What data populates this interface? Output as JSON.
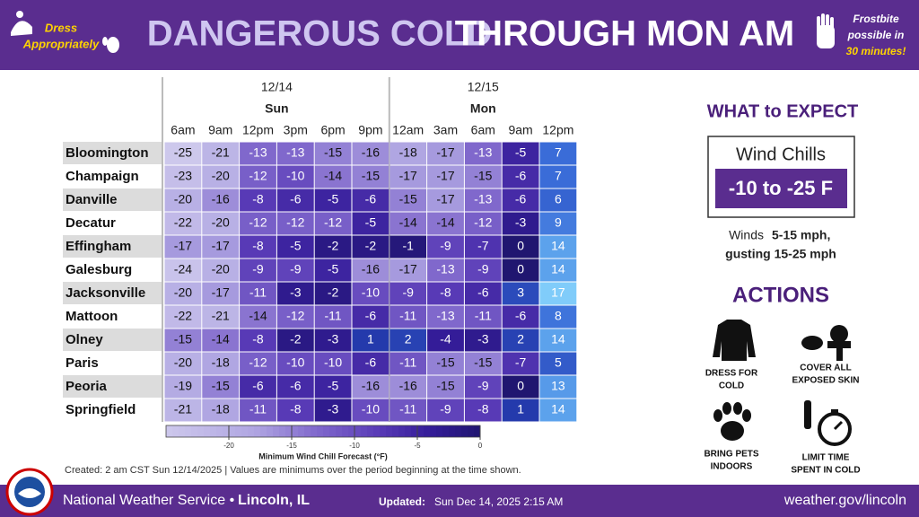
{
  "header": {
    "left_note": [
      "Dress",
      "Appropriately"
    ],
    "title_part1": "DANGEROUS COLD",
    "title_part2": "THROUGH MON AM",
    "right_note": [
      "Frostbite",
      "possible in",
      "30 minutes!"
    ]
  },
  "table": {
    "dates": [
      {
        "date": "12/14",
        "day": "Sun"
      },
      {
        "date": "12/15",
        "day": "Mon"
      }
    ],
    "times": [
      "6am",
      "9am",
      "12pm",
      "3pm",
      "6pm",
      "9pm",
      "12am",
      "3am",
      "6am",
      "9am",
      "12pm"
    ],
    "rows": [
      {
        "city": "Bloomington",
        "values": [
          -25,
          -21,
          -13,
          -13,
          -15,
          -16,
          -18,
          -17,
          -13,
          -5,
          7
        ]
      },
      {
        "city": "Champaign",
        "values": [
          -23,
          -20,
          -12,
          -10,
          -14,
          -15,
          -17,
          -17,
          -15,
          -6,
          7
        ]
      },
      {
        "city": "Danville",
        "values": [
          -20,
          -16,
          -8,
          -6,
          -5,
          -6,
          -15,
          -17,
          -13,
          -6,
          6
        ]
      },
      {
        "city": "Decatur",
        "values": [
          -22,
          -20,
          -12,
          -12,
          -12,
          -5,
          -14,
          -14,
          -12,
          -3,
          9
        ]
      },
      {
        "city": "Effingham",
        "values": [
          -17,
          -17,
          -8,
          -5,
          -2,
          -2,
          -1,
          -9,
          -7,
          0,
          14
        ]
      },
      {
        "city": "Galesburg",
        "values": [
          -24,
          -20,
          -9,
          -9,
          -5,
          -16,
          -17,
          -13,
          -9,
          0,
          14
        ]
      },
      {
        "city": "Jacksonville",
        "values": [
          -20,
          -17,
          -11,
          -3,
          -2,
          -10,
          -9,
          -8,
          -6,
          3,
          17
        ]
      },
      {
        "city": "Mattoon",
        "values": [
          -22,
          -21,
          -14,
          -12,
          -11,
          -6,
          -11,
          -13,
          -11,
          -6,
          8
        ]
      },
      {
        "city": "Olney",
        "values": [
          -15,
          -14,
          -8,
          -2,
          -3,
          1,
          2,
          -4,
          -3,
          2,
          14
        ]
      },
      {
        "city": "Paris",
        "values": [
          -20,
          -18,
          -12,
          -10,
          -10,
          -6,
          -11,
          -15,
          -15,
          -7,
          5
        ]
      },
      {
        "city": "Peoria",
        "values": [
          -19,
          -15,
          -6,
          -6,
          -5,
          -16,
          -16,
          -15,
          -9,
          0,
          13
        ]
      },
      {
        "city": "Springfield",
        "values": [
          -21,
          -18,
          -11,
          -8,
          -3,
          -10,
          -11,
          -9,
          -8,
          1,
          14
        ]
      }
    ]
  },
  "colorbar": {
    "label": "Minimum Wind Chill Forecast (°F)",
    "lim": [
      -25,
      0
    ],
    "ticks": [
      -20,
      -15,
      -10,
      -5,
      0
    ]
  },
  "created_note": "Created: 2 am CST Sun 12/14/2025  |  Values are minimums over the period beginning at the time shown.",
  "expect": {
    "title": "WHAT to EXPECT",
    "wind_chill_label": "Wind Chills",
    "wind_chill_range": "-10 to -25 F",
    "winds_label": "Winds",
    "winds_speed": "5-15 mph,",
    "gusts": "gusting 15-25 mph"
  },
  "actions": {
    "title": "ACTIONS",
    "items": [
      [
        "DRESS FOR",
        "COLD"
      ],
      [
        "COVER ALL",
        "EXPOSED SKIN"
      ],
      [
        "BRING PETS",
        "INDOORS"
      ],
      [
        "LIMIT TIME",
        "SPENT IN COLD"
      ]
    ]
  },
  "footer": {
    "agency": "National Weather Service •",
    "office": "Lincoln, IL",
    "updated_label": "Updated:",
    "updated": "Sun Dec 14, 2025 2:15 AM",
    "url": "weather.gov/lincoln"
  }
}
